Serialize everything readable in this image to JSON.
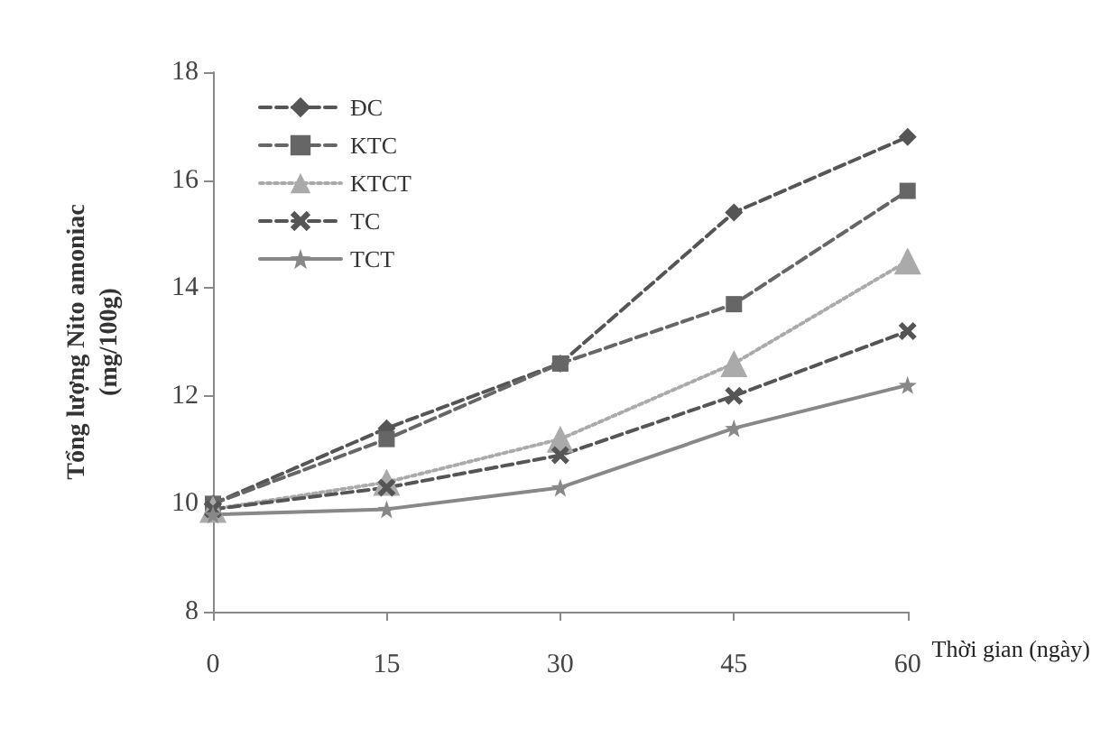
{
  "chart_data": {
    "type": "line",
    "xlabel": "Thời gian (ngày)",
    "ylabel": "Tổng lượng Nito amoniac\n(mg/100g)",
    "x": [
      0,
      15,
      30,
      45,
      60
    ],
    "series": [
      {
        "name": "ĐC",
        "color": "#555555",
        "marker": "diamond",
        "line_style": "dashed",
        "values": [
          10.0,
          11.4,
          12.6,
          15.4,
          16.8
        ]
      },
      {
        "name": "KTC",
        "color": "#666666",
        "marker": "square",
        "line_style": "dashed",
        "values": [
          10.0,
          11.2,
          12.6,
          13.7,
          15.8
        ]
      },
      {
        "name": "KTCT",
        "color": "#aaaaaa",
        "marker": "triangle",
        "line_style": "dotted",
        "values": [
          9.9,
          10.4,
          11.2,
          12.6,
          14.5
        ]
      },
      {
        "name": "TC",
        "color": "#555555",
        "marker": "cross",
        "line_style": "dashed",
        "values": [
          9.9,
          10.3,
          10.9,
          12.0,
          13.2
        ]
      },
      {
        "name": "TCT",
        "color": "#888888",
        "marker": "star",
        "line_style": "solid",
        "values": [
          9.8,
          9.9,
          10.3,
          11.4,
          12.2
        ]
      }
    ],
    "xlim": [
      0,
      60
    ],
    "xticks": [
      0,
      15,
      30,
      45,
      60
    ],
    "ylim": [
      8,
      18
    ],
    "yticks": [
      8,
      10,
      12,
      14,
      16,
      18
    ],
    "grid": false,
    "legend": "top left"
  }
}
